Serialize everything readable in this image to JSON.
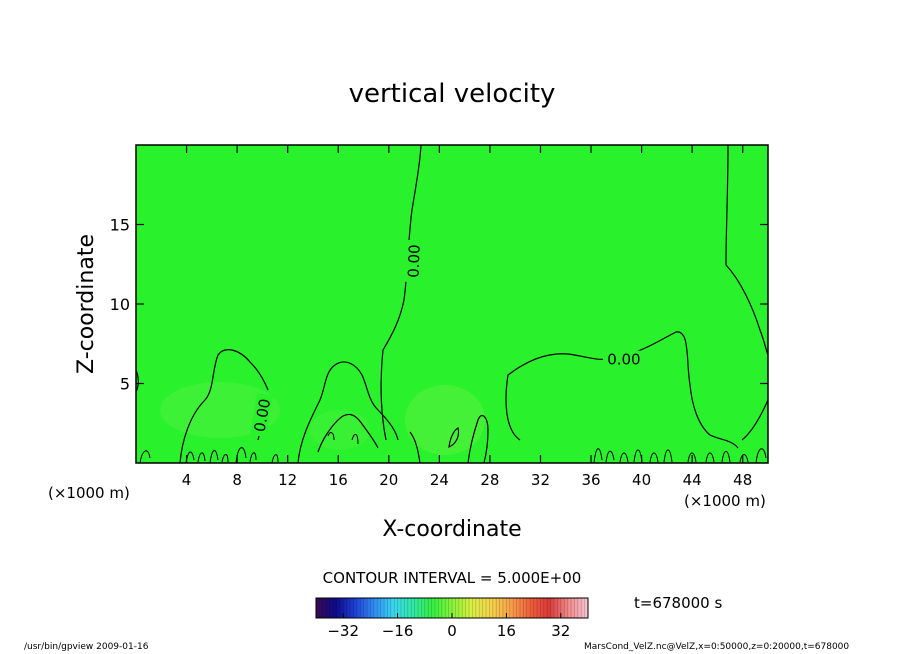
{
  "chart_data": {
    "type": "heatmap",
    "title": "vertical velocity",
    "xlabel": "X-coordinate",
    "ylabel": "Z-coordinate",
    "x_unit_left": "(×1000 m)",
    "x_unit_right": "(×1000 m)",
    "xlim": [
      0,
      50
    ],
    "ylim": [
      0,
      20
    ],
    "x_ticks": [
      4,
      8,
      12,
      16,
      20,
      24,
      28,
      32,
      36,
      40,
      44,
      48
    ],
    "y_ticks": [
      5,
      10,
      15
    ],
    "contour_labels": [
      {
        "text": "0.00",
        "x": 22.0,
        "y": 12.7,
        "angle": -88
      },
      {
        "text": "0.00",
        "x": 38.6,
        "y": 6.5,
        "angle": 0
      },
      {
        "text": "0.00",
        "x": 10.0,
        "y": 3.0,
        "angle": -80
      }
    ],
    "contour_interval_text": "CONTOUR INTERVAL = 5.000E+00",
    "time_text": "t=678000 s",
    "colorbar": {
      "range": [
        -40,
        40
      ],
      "ticks": [
        -32,
        -16,
        0,
        16,
        32
      ],
      "tick_labels": [
        "−32",
        "−16",
        "0",
        "16",
        "32"
      ],
      "colors": [
        "#3a0a4f",
        "#0e0a8a",
        "#1f3fd6",
        "#2f8df2",
        "#3ad6f0",
        "#2fe8a6",
        "#33f040",
        "#86f23a",
        "#d7f041",
        "#f5d24a",
        "#f5a24a",
        "#f0603a",
        "#d93a3a",
        "#f08a8a",
        "#f6c6d2"
      ]
    },
    "field_color": "#29f12c"
  },
  "footer": {
    "left": "/usr/bin/gpview  2009-01-16",
    "right": "MarsCond_VelZ.nc@VelZ,x=0:50000,z=0:20000,t=678000"
  }
}
